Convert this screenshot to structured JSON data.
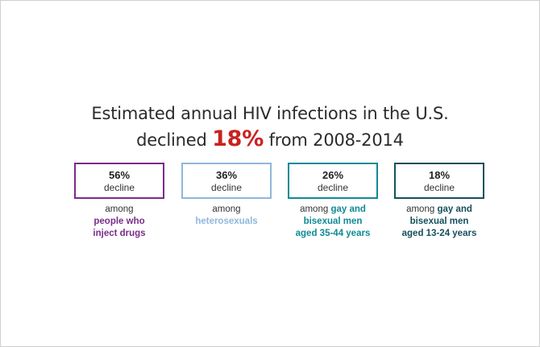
{
  "headline": {
    "line1": "Estimated annual HIV infections in the U.S.",
    "line2_prefix": "declined",
    "line2_highlight": "18%",
    "line2_suffix": "from 2008-2014"
  },
  "stats": [
    {
      "value": "56%",
      "unit": "decline",
      "caption": {
        "pre": "among",
        "line1": "people who",
        "line2": "inject drugs",
        "inline": ""
      },
      "color": "#7b2b8a"
    },
    {
      "value": "36%",
      "unit": "decline",
      "caption": {
        "pre": "among",
        "line1": "heterosexuals",
        "line2": "",
        "inline": ""
      },
      "color": "#8fb7dc"
    },
    {
      "value": "26%",
      "unit": "decline",
      "caption": {
        "pre": "among",
        "inline": "gay and",
        "line1": "bisexual men",
        "line2": "aged 35-44 years"
      },
      "color": "#0f8a96"
    },
    {
      "value": "18%",
      "unit": "decline",
      "caption": {
        "pre": "among",
        "inline": "gay and",
        "line1": "bisexual men",
        "line2": "aged 13-24 years"
      },
      "color": "#15505d"
    }
  ],
  "colors": {
    "highlight_red": "#c8231f",
    "text": "#2b2b2b",
    "frame_border": "#cfcfcf"
  }
}
